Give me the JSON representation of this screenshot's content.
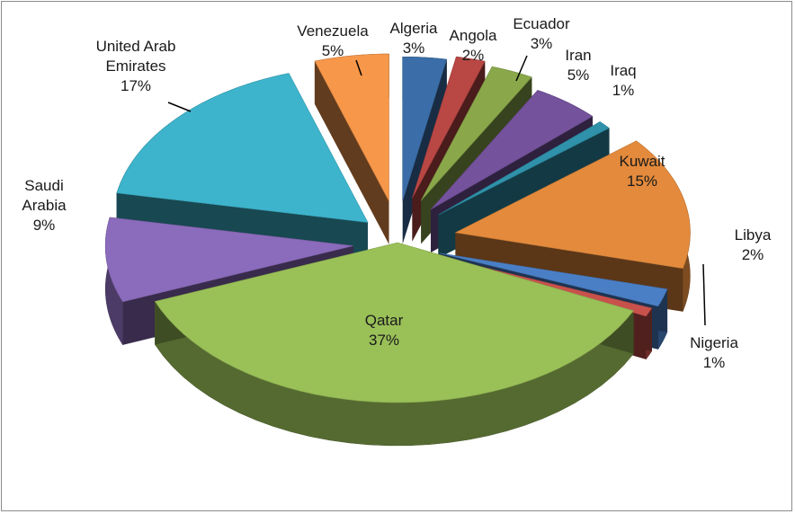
{
  "chart_data": {
    "type": "pie",
    "style": "3d-exploded",
    "title": "",
    "legend": "none",
    "categories": [
      "Algeria",
      "Angola",
      "Ecuador",
      "Iran",
      "Iraq",
      "Kuwait",
      "Libya",
      "Nigeria",
      "Qatar",
      "Saudi Arabia",
      "United Arab Emirates",
      "Venezuela"
    ],
    "values": [
      3,
      2,
      3,
      5,
      1,
      15,
      2,
      1,
      37,
      9,
      17,
      5
    ],
    "value_labels": [
      "3%",
      "2%",
      "3%",
      "5%",
      "1%",
      "15%",
      "2%",
      "1%",
      "37%",
      "9%",
      "17%",
      "5%"
    ],
    "slice_labels": [
      [
        "Algeria"
      ],
      [
        "Angola"
      ],
      [
        "Ecuador"
      ],
      [
        "Iran"
      ],
      [
        "Iraq"
      ],
      [
        "Kuwait"
      ],
      [
        "Libya"
      ],
      [
        "Nigeria"
      ],
      [
        "Qatar"
      ],
      [
        "Saudi",
        "Arabia"
      ],
      [
        "United Arab",
        "Emirates"
      ],
      [
        "Venezuela"
      ]
    ],
    "colors": [
      "#3b6ea8",
      "#b94744",
      "#8aa84a",
      "#74529c",
      "#2f91aa",
      "#e38a3c",
      "#4a7fc6",
      "#c9514c",
      "#9ac058",
      "#8b6bbb",
      "#3db4cc",
      "#f6974a"
    ]
  }
}
